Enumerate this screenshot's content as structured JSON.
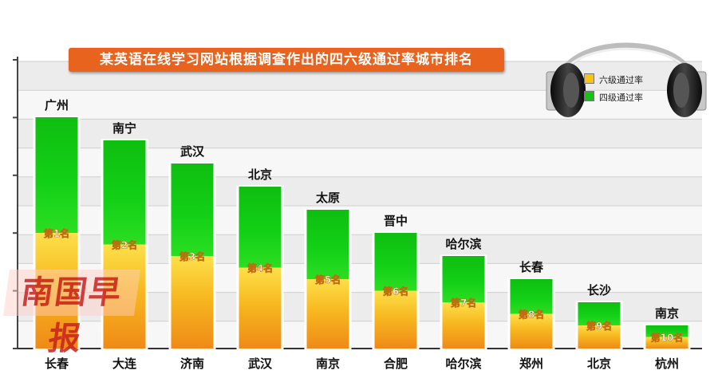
{
  "title": "某英语在线学习网站根据调查作出的四六级通过率城市排名",
  "watermark": "南国早报",
  "legend": [
    {
      "label": "六级通过率",
      "color": "#f6c414"
    },
    {
      "label": "四级通过率",
      "color": "#19c21a"
    }
  ],
  "chart_data": {
    "type": "bar",
    "title": "某英语在线学习网站根据调查作出的四六级通过率城市排名",
    "xlabel": "",
    "ylabel": "",
    "grid": true,
    "legend_position": "top-right",
    "ylim": [
      0,
      10
    ],
    "categories": [
      "长春",
      "大连",
      "济南",
      "武汉",
      "南京",
      "合肥",
      "哈尔滨",
      "郑州",
      "北京",
      "杭州"
    ],
    "series": [
      {
        "name": "四级通过率",
        "color": "#19c21a",
        "labels": [
          "广州",
          "南宁",
          "武汉",
          "北京",
          "太原",
          "晋中",
          "哈尔滨",
          "长春",
          "长沙",
          "南京"
        ],
        "values": [
          10,
          9,
          8,
          7,
          6,
          5,
          4,
          3,
          2,
          1
        ]
      },
      {
        "name": "六级通过率",
        "color": "#f6c414",
        "labels": [
          "第1名",
          "第2名",
          "第3名",
          "第4名",
          "第5名",
          "第6名",
          "第7名",
          "第8名",
          "第9名",
          "第10名"
        ],
        "values": [
          10,
          9,
          8,
          7,
          6,
          5,
          4,
          3,
          2,
          1
        ]
      }
    ]
  }
}
